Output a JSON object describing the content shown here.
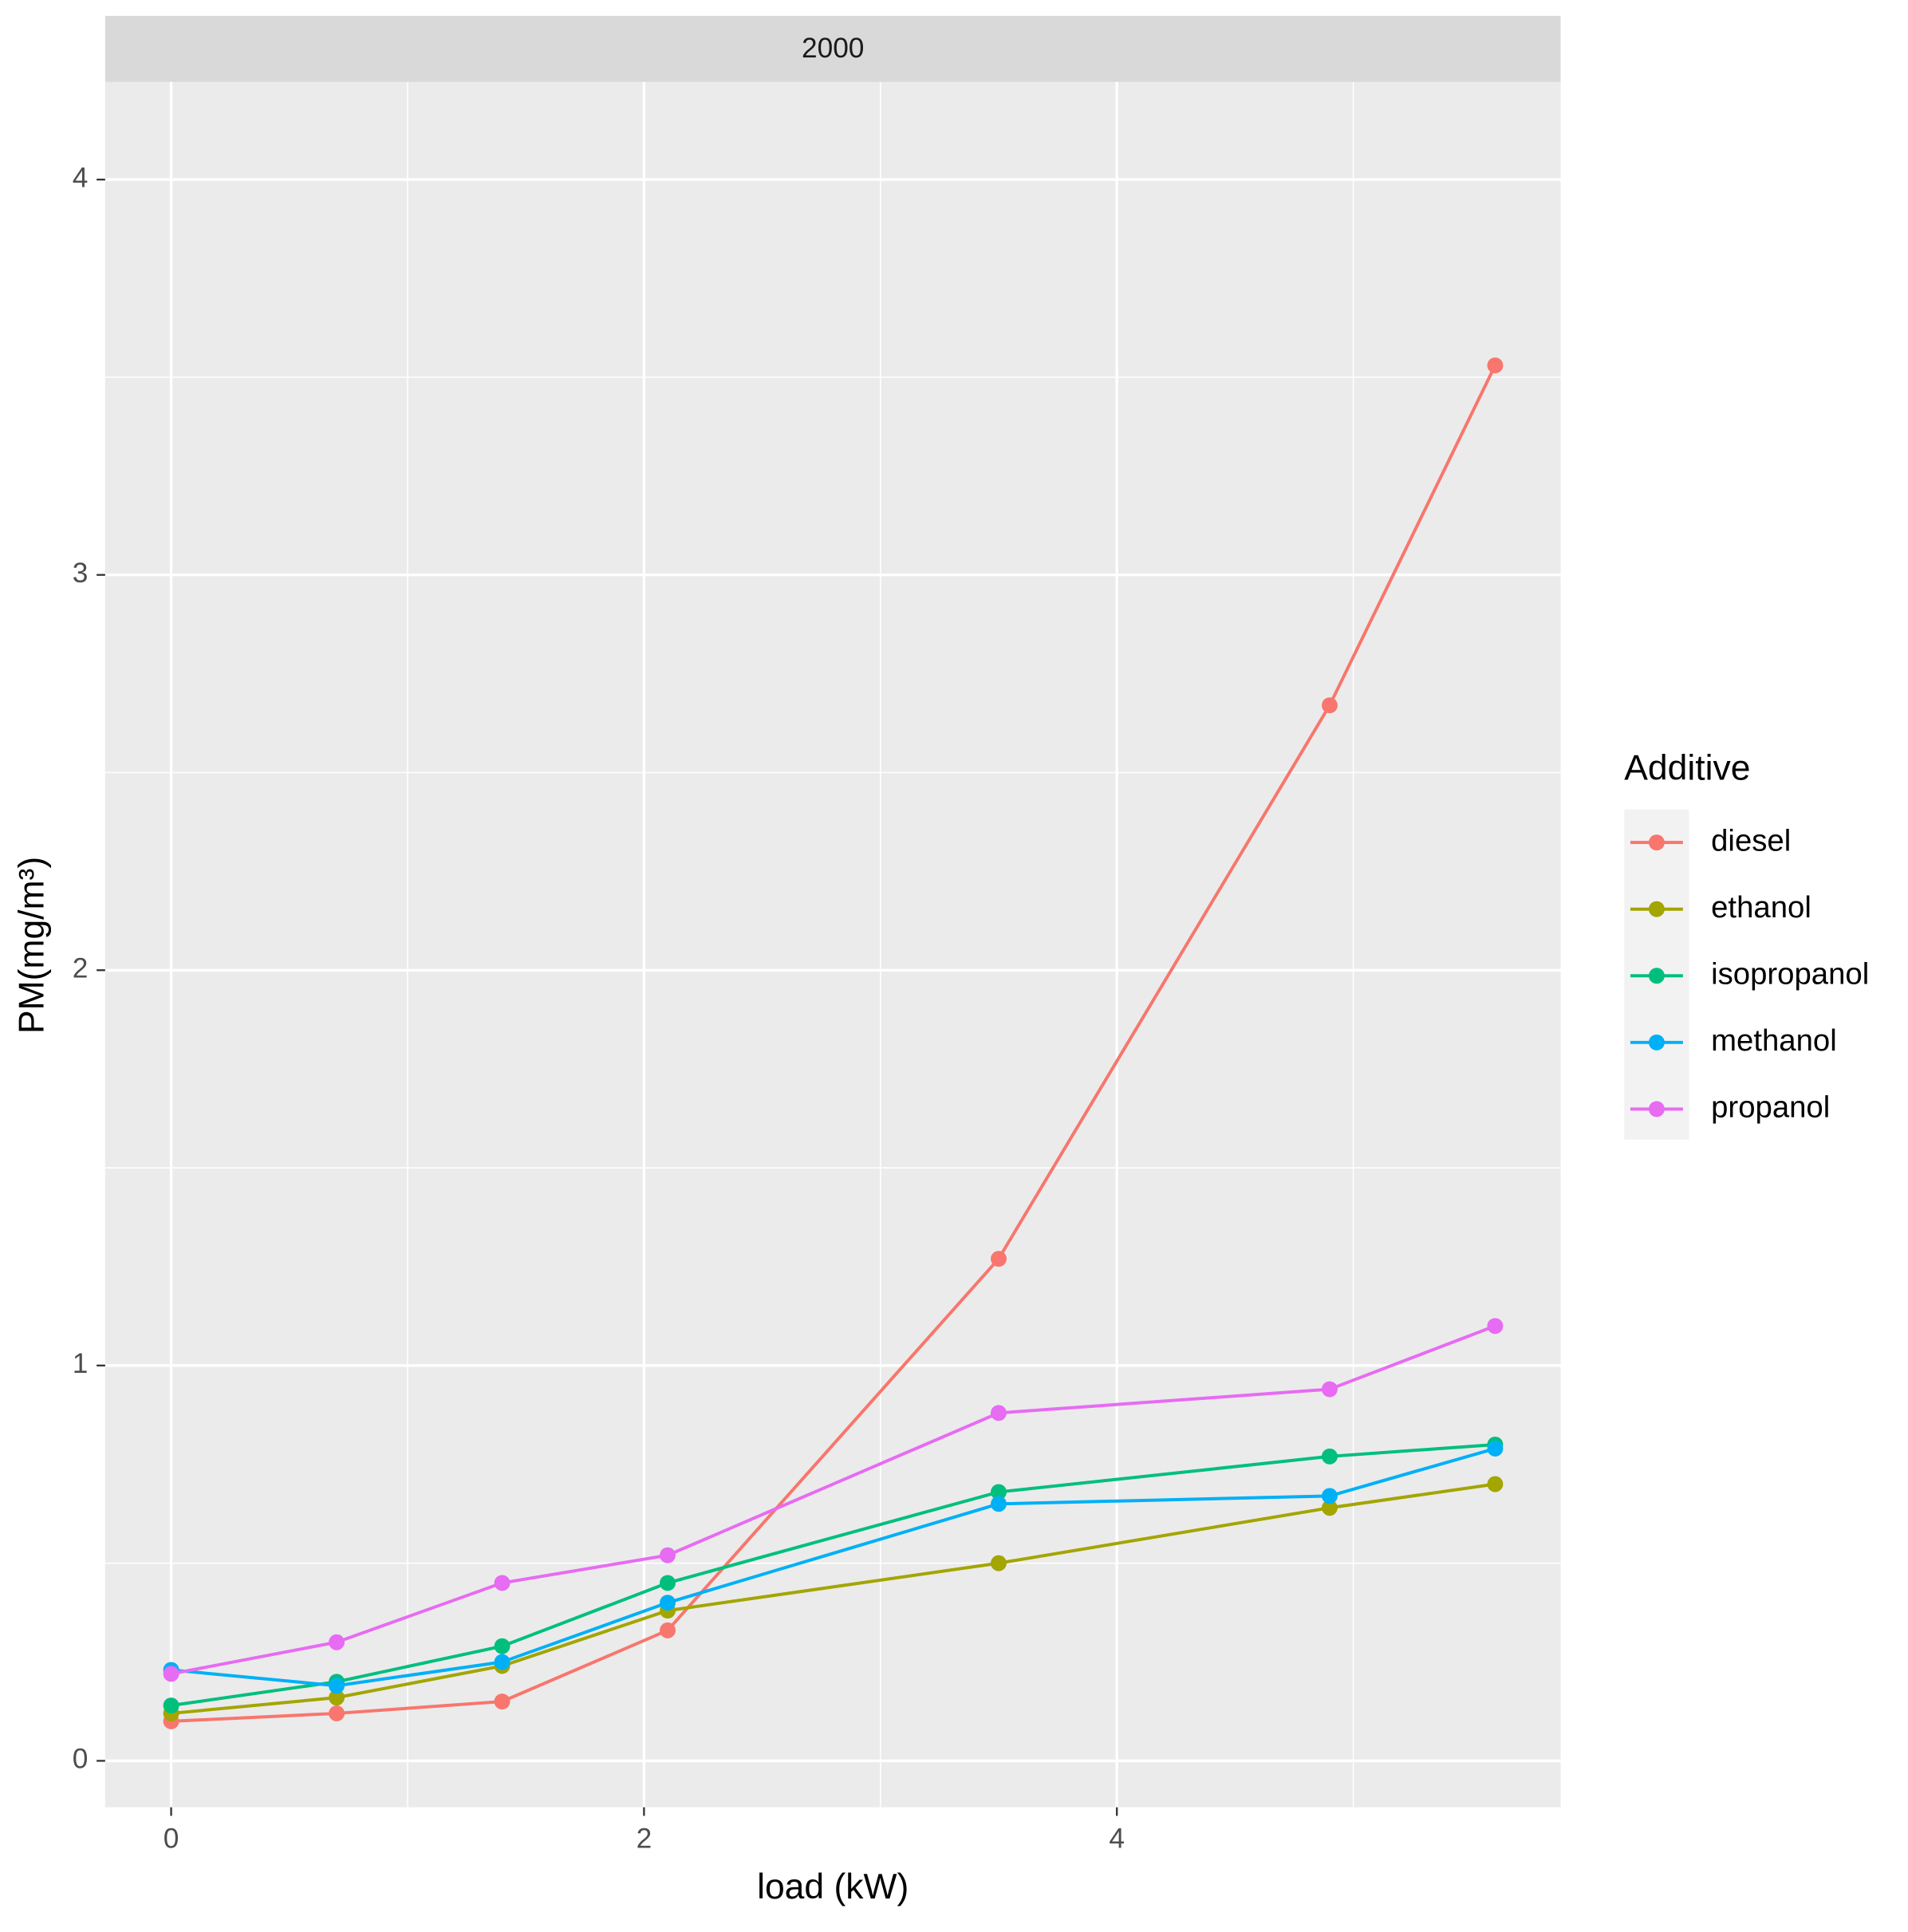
{
  "chart_data": {
    "type": "line",
    "facet": "2000",
    "x_label": "load (kW)",
    "y_label": "PM(mg/m³)",
    "legend_title": "Additive",
    "x": [
      0,
      0.7,
      1.4,
      2.1,
      3.5,
      4.9,
      5.6
    ],
    "series": [
      {
        "name": "diesel",
        "color": "#f8766d",
        "values": [
          0.1,
          0.12,
          0.15,
          0.33,
          1.27,
          2.67,
          3.53
        ]
      },
      {
        "name": "ethanol",
        "color": "#a3a500",
        "values": [
          0.12,
          0.16,
          0.24,
          0.38,
          0.5,
          0.64,
          0.7
        ]
      },
      {
        "name": "isopropanol",
        "color": "#00bf7d",
        "values": [
          0.14,
          0.2,
          0.29,
          0.45,
          0.68,
          0.77,
          0.8
        ]
      },
      {
        "name": "methanol",
        "color": "#00b0f6",
        "values": [
          0.23,
          0.19,
          0.25,
          0.4,
          0.65,
          0.67,
          0.79
        ]
      },
      {
        "name": "propanol",
        "color": "#e76bf3",
        "values": [
          0.22,
          0.3,
          0.45,
          0.52,
          0.88,
          0.94,
          1.1
        ]
      }
    ],
    "xlim": [
      -0.279,
      5.877
    ],
    "xticks": [
      0,
      2,
      4
    ],
    "ylim": [
      -0.1175,
      4.247
    ],
    "yticks": [
      0,
      1,
      2,
      3,
      4
    ],
    "grid": true,
    "legend": "right"
  }
}
